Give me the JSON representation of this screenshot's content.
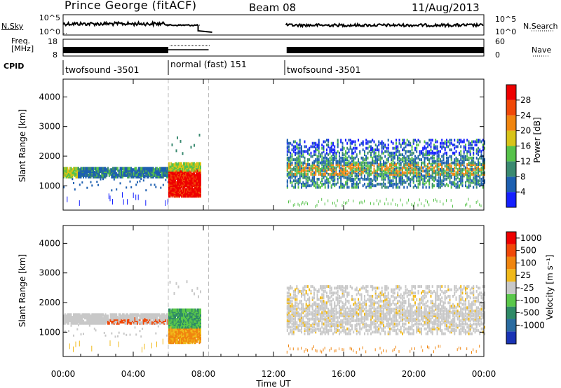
{
  "header": {
    "site": "Prince George (fitACF)",
    "beam": "Beam 08",
    "date": "11/Aug/2013"
  },
  "noise_panel": {
    "left_label": "N.Sky",
    "left_ticks": [
      "10^5",
      "10^0"
    ],
    "right_label": "N.Search",
    "right_ticks": [
      "10^5",
      "10^0"
    ]
  },
  "freq_panel": {
    "left_label_line1": "Freq.",
    "left_label_line2": "[MHz]",
    "left_ticks": [
      "18",
      "8"
    ],
    "right_label": "Nave",
    "right_ticks": [
      "60",
      "0"
    ]
  },
  "cpid_panel": {
    "label": "CPID",
    "segments": [
      {
        "text": "twofsound -3501",
        "start_hr": 0.0
      },
      {
        "text": "normal (fast) 151",
        "start_hr": 6.0
      },
      {
        "text": "twofsound -3501",
        "start_hr": 12.75
      }
    ]
  },
  "x_axis": {
    "label": "Time UT",
    "ticks": [
      "00:00",
      "04:00",
      "08:00",
      "12:00",
      "16:00",
      "20:00",
      "00:00"
    ],
    "range_hr": [
      0,
      24
    ]
  },
  "chart_data": [
    {
      "type": "heatmap",
      "ylabel": "Slant Range [km]",
      "yticks": [
        1000,
        2000,
        3000,
        4000
      ],
      "ylim": [
        180,
        4600
      ],
      "colorbar_label": "Power [dB]",
      "colorbar_ticks": [
        "4",
        "8",
        "12",
        "16",
        "20",
        "24",
        "28"
      ],
      "colors": [
        "#1520ff",
        "#1d5fb0",
        "#3a8a70",
        "#56c24a",
        "#d8c318",
        "#f0850f",
        "#f04808",
        "#ee0000"
      ]
    },
    {
      "type": "heatmap",
      "ylabel": "Slant Range [km]",
      "yticks": [
        1000,
        2000,
        3000,
        4000
      ],
      "ylim": [
        180,
        4600
      ],
      "colorbar_label": "Velocity [m s⁻¹]",
      "colorbar_ticks": [
        "1000",
        "500",
        "100",
        "25",
        "-25",
        "-100",
        "-500",
        "-1000"
      ],
      "colors": [
        "#1933b5",
        "#2a6ba0",
        "#2e8a66",
        "#5ac84a",
        "#c8c8c8",
        "#f0b91a",
        "#f0850f",
        "#f04808",
        "#ee0000"
      ]
    }
  ]
}
